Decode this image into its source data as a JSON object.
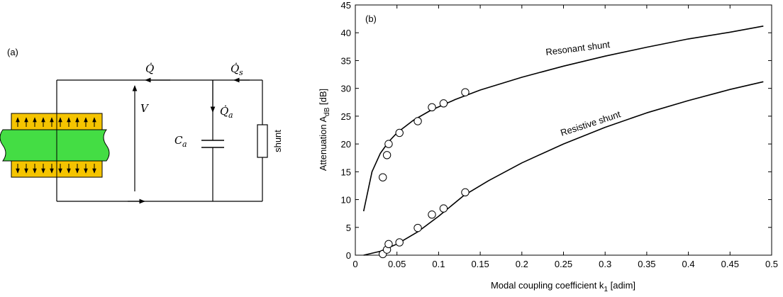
{
  "panel_a": {
    "label": "(a)",
    "labels": {
      "q_dot": "Q̇",
      "qs_dot": "Q̇",
      "qs_sub": "s",
      "qa_dot": "Q̇",
      "qa_sub": "a",
      "voltage": "V",
      "cap": "C",
      "cap_sub": "a",
      "shunt": "shunt"
    },
    "colors": {
      "piezo": "#f5c400",
      "beam": "#44dd44",
      "wire": "#000000"
    },
    "piezo_arrow_count": 10
  },
  "chart_data": {
    "type": "line",
    "panel_label": "(b)",
    "xlabel": "Modal coupling coefficient k",
    "xlabel_sub": "1",
    "xlabel_unit": " [adim]",
    "ylabel": "Attenuation A",
    "ylabel_sub": "dB",
    "ylabel_unit": " [dB]",
    "xlim": [
      0,
      0.5
    ],
    "ylim": [
      0,
      45
    ],
    "xticks": [
      "0",
      "0.05",
      "0.1",
      "0.15",
      "0.2",
      "0.25",
      "0.3",
      "0.35",
      "0.4",
      "0.45",
      "0.5"
    ],
    "yticks": [
      "0",
      "5",
      "10",
      "15",
      "20",
      "25",
      "30",
      "35",
      "40",
      "45"
    ],
    "grid": false,
    "series": [
      {
        "name": "Resonant shunt",
        "curve": [
          [
            0.01,
            7.9
          ],
          [
            0.02,
            15.0
          ],
          [
            0.03,
            18.3
          ],
          [
            0.04,
            20.4
          ],
          [
            0.05,
            22.0
          ],
          [
            0.07,
            24.3
          ],
          [
            0.09,
            26.0
          ],
          [
            0.12,
            28.0
          ],
          [
            0.15,
            29.7
          ],
          [
            0.2,
            32.0
          ],
          [
            0.25,
            34.0
          ],
          [
            0.3,
            35.8
          ],
          [
            0.35,
            37.4
          ],
          [
            0.4,
            38.9
          ],
          [
            0.45,
            40.1
          ],
          [
            0.49,
            41.2
          ]
        ],
        "points": [
          [
            0.033,
            14.0
          ],
          [
            0.038,
            18.0
          ],
          [
            0.04,
            20.0
          ],
          [
            0.053,
            22.0
          ],
          [
            0.075,
            24.1
          ],
          [
            0.092,
            26.6
          ],
          [
            0.106,
            27.3
          ],
          [
            0.132,
            29.3
          ]
        ]
      },
      {
        "name": "Resistive shunt",
        "curve": [
          [
            0.01,
            0.0
          ],
          [
            0.03,
            0.7
          ],
          [
            0.05,
            2.0
          ],
          [
            0.075,
            4.2
          ],
          [
            0.1,
            7.0
          ],
          [
            0.13,
            10.7
          ],
          [
            0.16,
            13.4
          ],
          [
            0.2,
            16.6
          ],
          [
            0.25,
            20.0
          ],
          [
            0.3,
            23.0
          ],
          [
            0.35,
            25.6
          ],
          [
            0.4,
            27.8
          ],
          [
            0.45,
            29.8
          ],
          [
            0.49,
            31.2
          ]
        ],
        "points": [
          [
            0.033,
            0.2
          ],
          [
            0.038,
            1.0
          ],
          [
            0.04,
            2.0
          ],
          [
            0.053,
            2.3
          ],
          [
            0.075,
            4.9
          ],
          [
            0.092,
            7.3
          ],
          [
            0.106,
            8.4
          ],
          [
            0.132,
            11.3
          ]
        ]
      }
    ]
  }
}
